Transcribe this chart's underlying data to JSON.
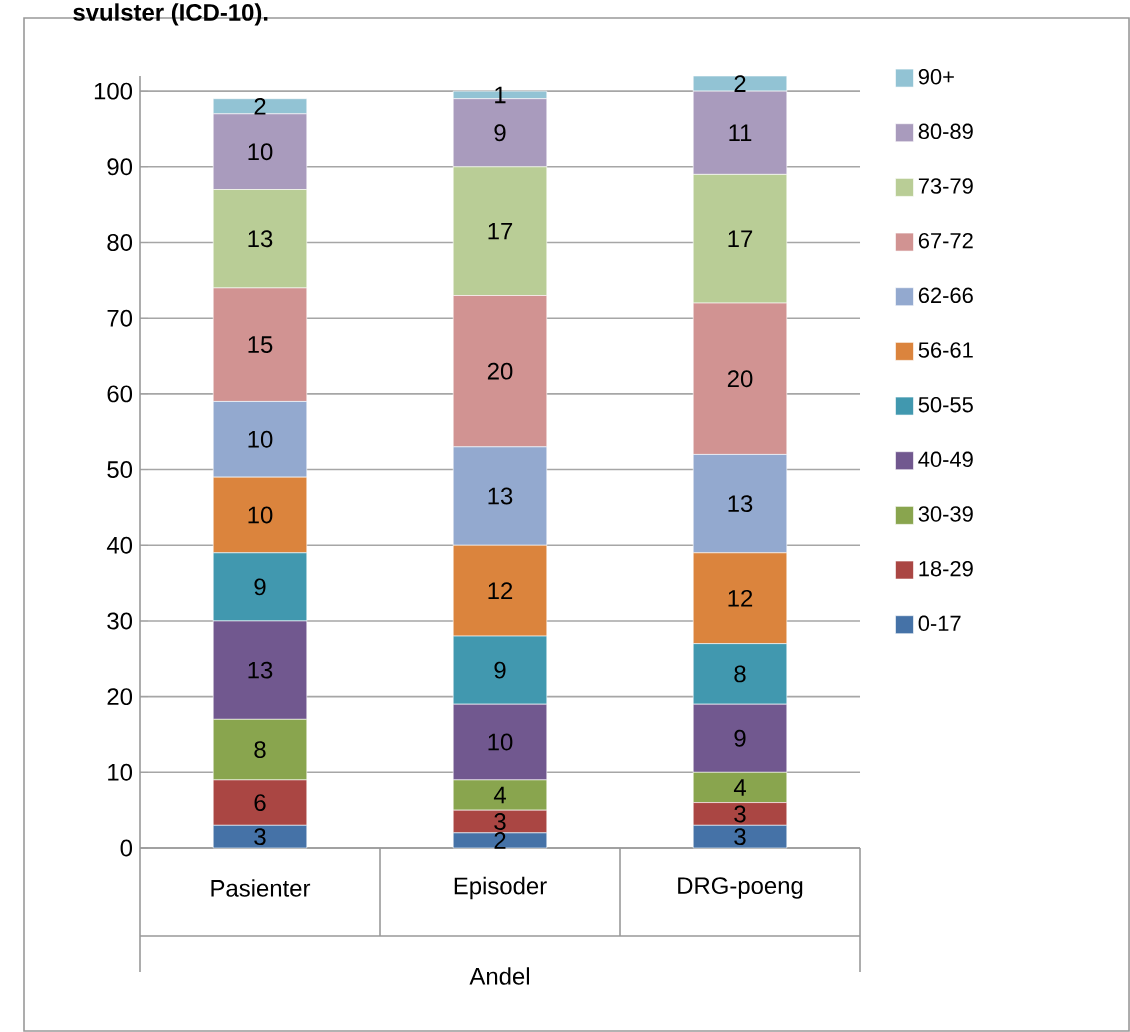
{
  "chart_data": {
    "type": "bar",
    "stacked": true,
    "title": "svulster (ICD-10).",
    "xlabel": "Andel",
    "categories": [
      "Pasienter",
      "Episoder",
      "DRG-poeng"
    ],
    "series": [
      {
        "name": "0-17",
        "color": "#4572a7",
        "values": [
          3,
          2,
          3
        ]
      },
      {
        "name": "18-29",
        "color": "#aa4643",
        "values": [
          6,
          3,
          3
        ]
      },
      {
        "name": "30-39",
        "color": "#89a54e",
        "values": [
          8,
          4,
          4
        ]
      },
      {
        "name": "40-49",
        "color": "#71588f",
        "values": [
          13,
          10,
          9
        ]
      },
      {
        "name": "50-55",
        "color": "#4198af",
        "values": [
          9,
          9,
          8
        ]
      },
      {
        "name": "56-61",
        "color": "#db843d",
        "values": [
          10,
          12,
          12
        ]
      },
      {
        "name": "62-66",
        "color": "#93a9cf",
        "values": [
          10,
          13,
          13
        ]
      },
      {
        "name": "67-72",
        "color": "#d19392",
        "values": [
          15,
          20,
          20
        ]
      },
      {
        "name": "73-79",
        "color": "#b9cd96",
        "values": [
          13,
          17,
          17
        ]
      },
      {
        "name": "80-89",
        "color": "#a99bbd",
        "values": [
          10,
          9,
          11
        ]
      },
      {
        "name": "90+",
        "color": "#92c3d4",
        "values": [
          2,
          1,
          2
        ]
      }
    ],
    "ylim": [
      0,
      102
    ],
    "yticks": [
      0,
      10,
      20,
      30,
      40,
      50,
      60,
      70,
      80,
      90,
      100
    ],
    "grid": "y",
    "legend": "right",
    "data_labels": true
  }
}
